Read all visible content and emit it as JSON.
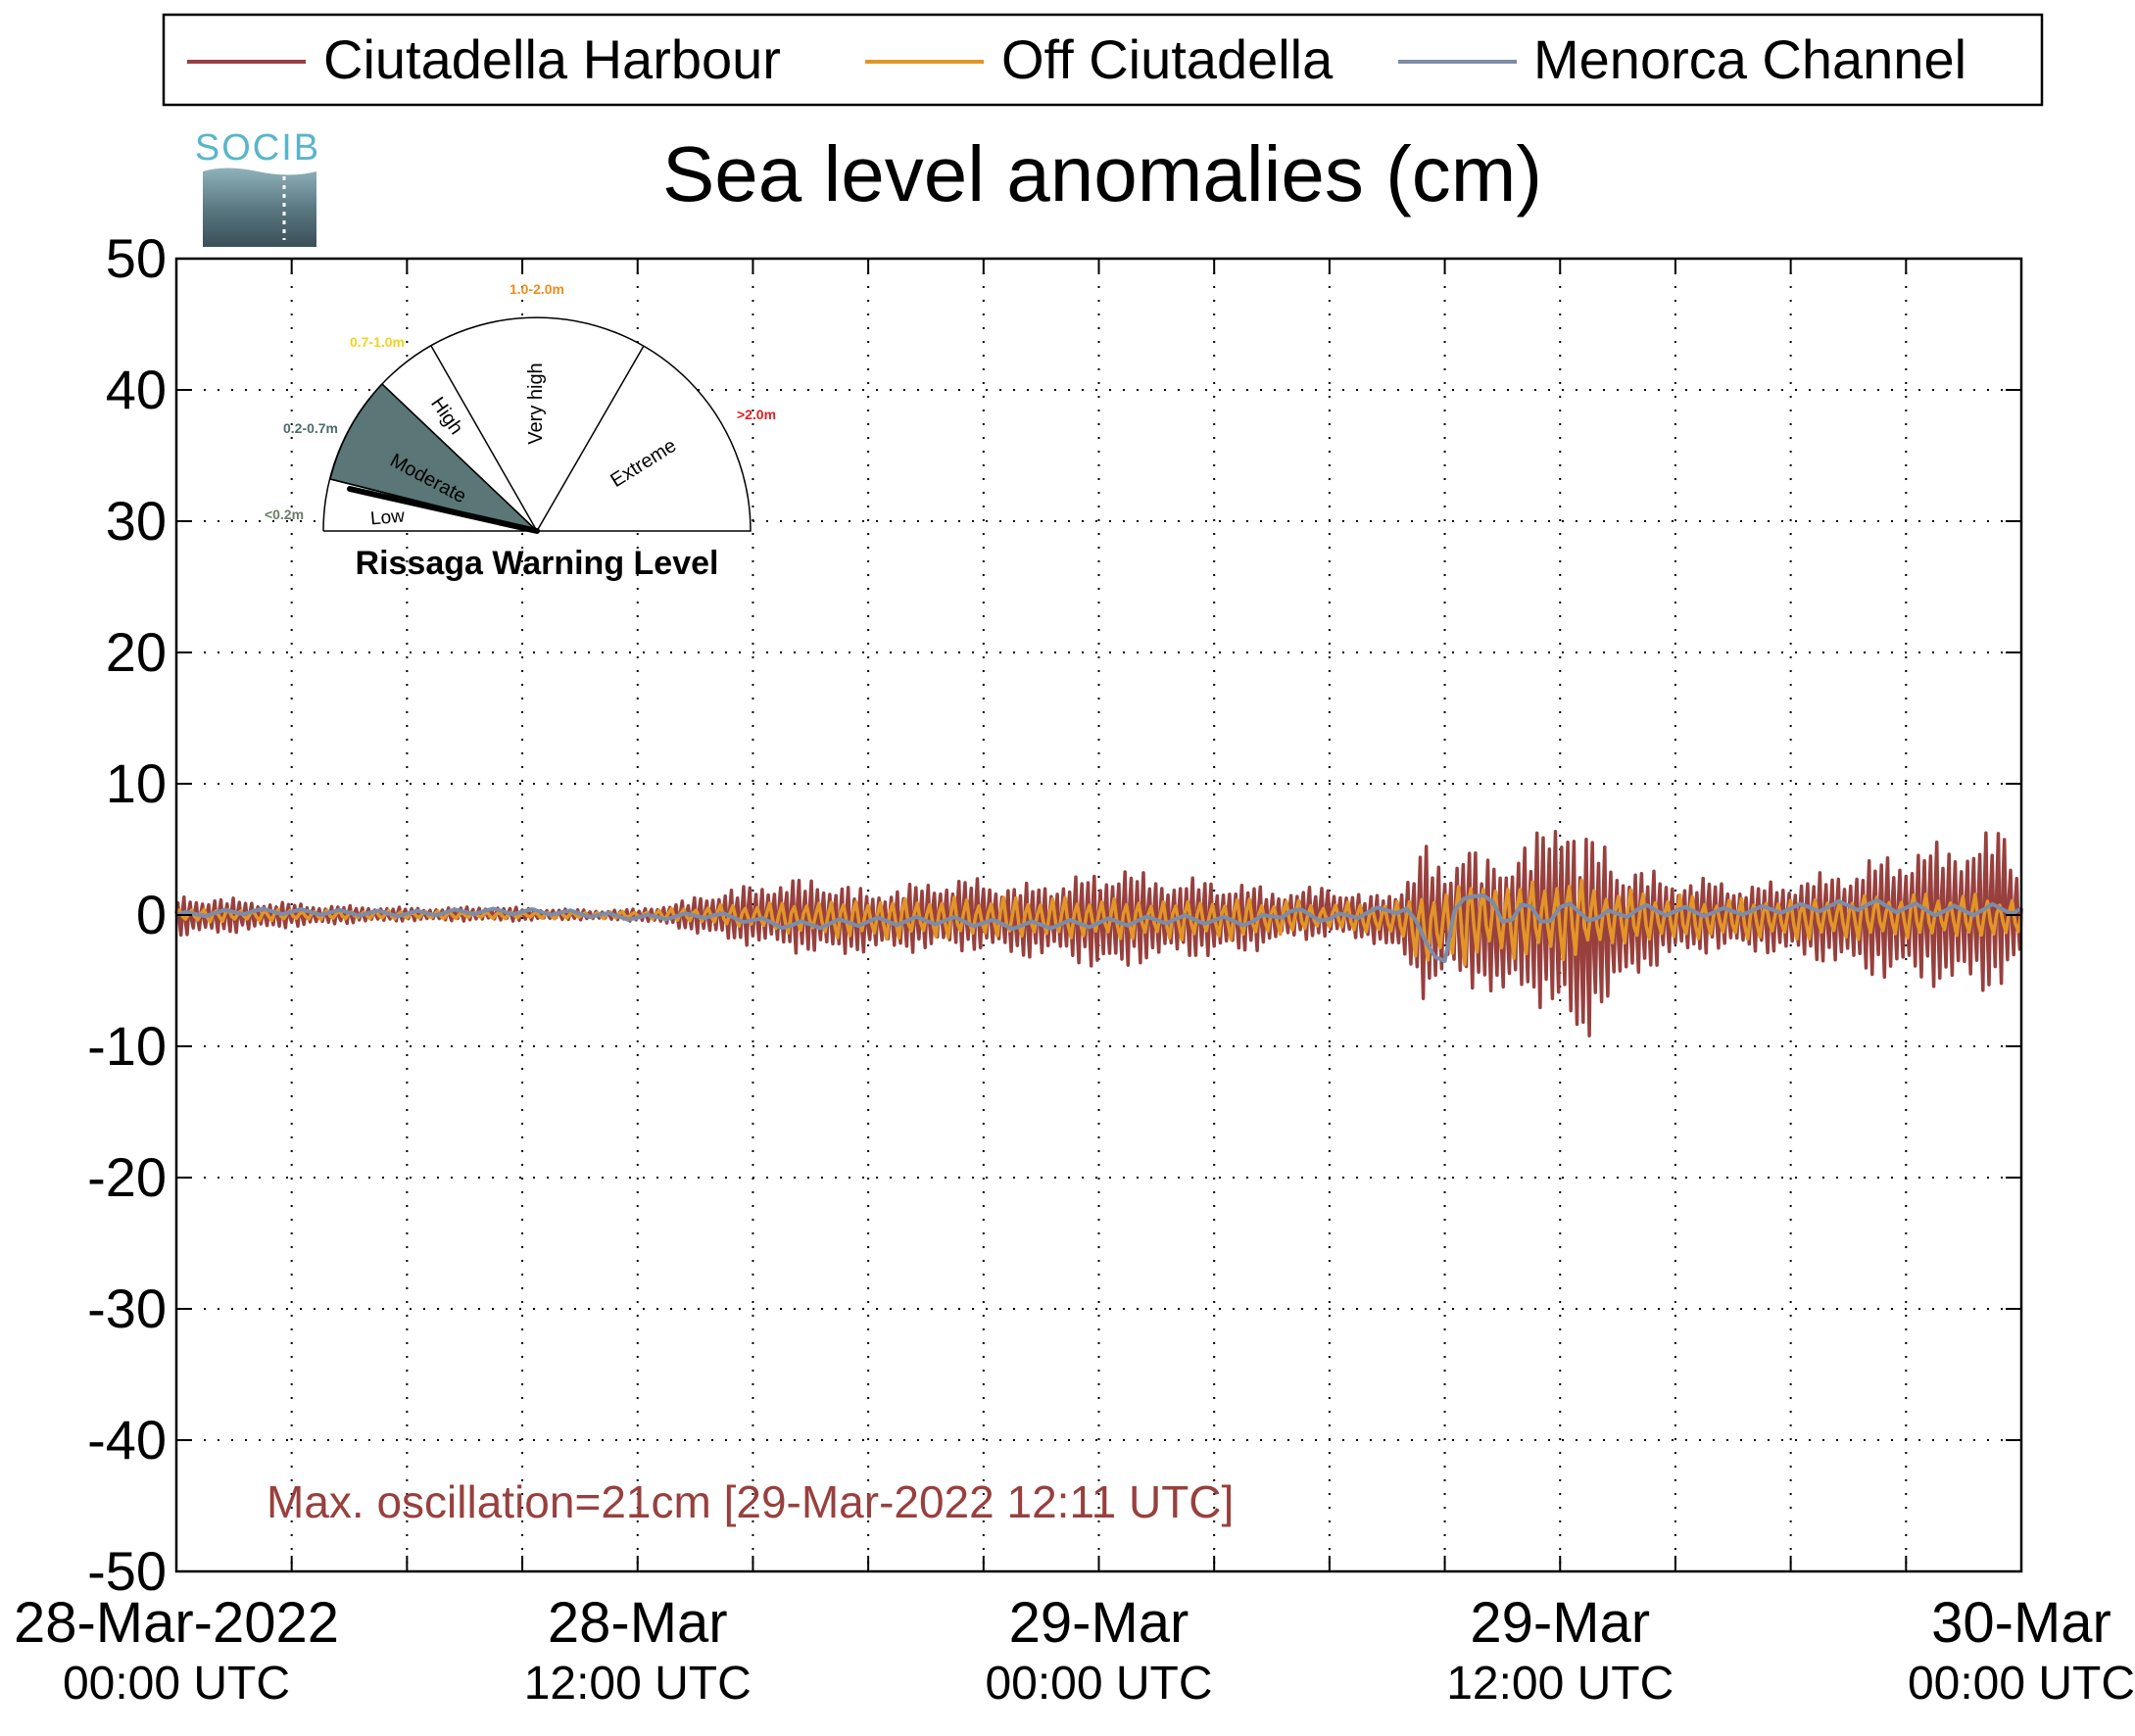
{
  "legend": {
    "entries": [
      {
        "label": "Ciutadella Harbour",
        "color": "#98403e"
      },
      {
        "label": "Off Ciutadella",
        "color": "#e39527"
      },
      {
        "label": "Menorca Channel",
        "color": "#7c8ca9"
      }
    ]
  },
  "logo": {
    "text": "SOCIB",
    "color": "#58b6c9"
  },
  "gauge": {
    "title": "Rissaga Warning Level",
    "sectors": [
      {
        "label": "Low",
        "range": "<0.2m",
        "range_color": "#6b7d64"
      },
      {
        "label": "Moderate",
        "range": "0.2-0.7m",
        "range_color": "#4c6c6c"
      },
      {
        "label": "High",
        "range": "0.7-1.0m",
        "range_color": "#f2d21e"
      },
      {
        "label": "Very high",
        "range": "1.0-2.0m",
        "range_color": "#f08c1e"
      },
      {
        "label": "Extreme",
        "range": ">2.0m",
        "range_color": "#e02020"
      }
    ],
    "active_level": "Moderate",
    "active_color": "#5a7676"
  },
  "annotation": {
    "text": "Max. oscillation=21cm [29-Mar-2022 12:11 UTC]",
    "color": "#98403e"
  },
  "chart_data": {
    "type": "line",
    "title": "Sea level anomalies (cm)",
    "xlabel": "",
    "ylabel": "",
    "x_unit": "hours since 28-Mar-2022 00:00 UTC",
    "xlim": [
      0,
      48
    ],
    "ylim": [
      -50,
      50
    ],
    "yticks": [
      50,
      40,
      30,
      20,
      10,
      0,
      -10,
      -20,
      -30,
      -40,
      -50
    ],
    "ytick_labels": [
      "50",
      "40",
      "30",
      "20",
      "10",
      "0",
      "-10",
      "-20",
      "-30",
      "-40",
      "-50"
    ],
    "xticks_major": [
      {
        "x": 0,
        "line1": "28-Mar-2022",
        "line2": "00:00 UTC"
      },
      {
        "x": 12,
        "line1": "28-Mar",
        "line2": "12:00 UTC"
      },
      {
        "x": 24,
        "line1": "29-Mar",
        "line2": "00:00 UTC"
      },
      {
        "x": 36,
        "line1": "29-Mar",
        "line2": "12:00 UTC"
      },
      {
        "x": 48,
        "line1": "30-Mar",
        "line2": "00:00 UTC"
      }
    ],
    "grid": true,
    "grid_x": [
      3,
      6,
      9,
      12,
      15,
      18,
      21,
      24,
      27,
      30,
      33,
      36,
      39,
      42,
      45
    ],
    "grid_y": [
      40,
      30,
      20,
      10,
      0,
      -10,
      -20,
      -30,
      -40
    ],
    "legend_position": "top",
    "series": [
      {
        "name": "Ciutadella Harbour",
        "color": "#98403e",
        "x": [
          0,
          1,
          2,
          3,
          4,
          5,
          6,
          7,
          8,
          9,
          10,
          11,
          12,
          13,
          14,
          15,
          16,
          17,
          18,
          19,
          20,
          21,
          22,
          23,
          24,
          24.5,
          25,
          26,
          27,
          28,
          29,
          30,
          31,
          32,
          32.5,
          33,
          33.5,
          34,
          34.5,
          35,
          35.5,
          36,
          36.2,
          36.5,
          37,
          37.5,
          38,
          39,
          40,
          41,
          42,
          43,
          44,
          45,
          46,
          47,
          47.5,
          48
        ],
        "upper": [
          1.5,
          1.5,
          1.2,
          1.0,
          0.8,
          0.7,
          0.6,
          0.6,
          0.7,
          0.6,
          0.5,
          0.4,
          0.5,
          1.0,
          2.0,
          2.5,
          3.0,
          3.0,
          2.0,
          2.5,
          3.0,
          3.0,
          2.5,
          3.0,
          3.5,
          4.5,
          3.5,
          3.0,
          3.0,
          2.5,
          2.0,
          2.5,
          1.5,
          3.0,
          6.0,
          4.0,
          6.5,
          4.5,
          5.5,
          6.0,
          7.0,
          9.0,
          10.0,
          7.0,
          6.5,
          5.0,
          4.0,
          3.0,
          3.0,
          2.5,
          3.0,
          3.5,
          4.5,
          5.5,
          6.0,
          6.5,
          7.5,
          4.0
        ],
        "lower": [
          -1.8,
          -1.6,
          -1.3,
          -1.0,
          -0.8,
          -0.6,
          -0.5,
          -0.5,
          -0.5,
          -0.5,
          -0.4,
          -0.4,
          -0.5,
          -1.0,
          -2.0,
          -2.5,
          -3.0,
          -3.5,
          -3.0,
          -3.0,
          -3.0,
          -3.0,
          -3.5,
          -3.5,
          -4.5,
          -5.0,
          -4.0,
          -3.5,
          -3.5,
          -3.0,
          -2.0,
          -2.0,
          -2.0,
          -4.0,
          -7.0,
          -5.0,
          -6.5,
          -5.5,
          -8.0,
          -6.5,
          -7.5,
          -9.0,
          -10.5,
          -11.5,
          -8.0,
          -7.0,
          -5.0,
          -3.5,
          -3.0,
          -3.0,
          -3.5,
          -4.0,
          -5.0,
          -5.5,
          -6.0,
          -6.5,
          -6.0,
          -4.5
        ],
        "period_h": 0.16
      },
      {
        "name": "Off Ciutadella",
        "color": "#e39527",
        "x": [
          0,
          4,
          8,
          12,
          14,
          16,
          18,
          20,
          22,
          24,
          26,
          28,
          30,
          32,
          32.5,
          33,
          33.5,
          34,
          35,
          36,
          37,
          38,
          40,
          42,
          44,
          46,
          48
        ],
        "upper": [
          0.6,
          0.4,
          0.3,
          0.3,
          0.8,
          1.2,
          1.5,
          1.5,
          1.5,
          1.5,
          1.4,
          1.5,
          1.0,
          1.2,
          3.0,
          2.0,
          3.5,
          3.0,
          3.0,
          3.5,
          2.5,
          2.0,
          1.5,
          1.5,
          1.8,
          1.8,
          1.5
        ],
        "lower": [
          -0.6,
          -0.4,
          -0.3,
          -0.3,
          -0.8,
          -1.5,
          -2.0,
          -2.0,
          -2.0,
          -2.0,
          -2.0,
          -2.0,
          -1.2,
          -2.0,
          -5.0,
          -3.5,
          -4.0,
          -3.5,
          -3.5,
          -4.0,
          -3.0,
          -2.5,
          -2.0,
          -2.0,
          -2.0,
          -2.0,
          -2.0
        ],
        "period_h": 0.32
      },
      {
        "name": "Menorca Channel",
        "color": "#7c8ca9",
        "x": [
          0,
          2,
          4,
          6,
          8,
          10,
          12,
          14,
          16,
          18,
          20,
          22,
          24,
          26,
          28,
          29,
          30,
          31,
          32,
          32.5,
          33,
          33.3,
          33.7,
          34,
          34.5,
          35,
          35.5,
          36,
          37,
          38,
          40,
          42,
          44,
          46,
          48
        ],
        "y": [
          0.0,
          0.3,
          0.2,
          0.1,
          0.3,
          0.2,
          -0.2,
          0.0,
          -0.8,
          -0.5,
          -0.4,
          -0.8,
          -0.6,
          -0.3,
          -0.5,
          0.3,
          -0.3,
          0.2,
          0.5,
          -2.0,
          -3.5,
          0.5,
          2.0,
          1.5,
          -0.5,
          0.8,
          -0.5,
          0.6,
          -0.2,
          0.4,
          0.2,
          0.5,
          0.8,
          0.3,
          0.5
        ],
        "ripple": [
          0.2,
          0.2,
          0.2,
          0.2,
          0.2,
          0.2,
          0.2,
          0.2,
          0.3,
          0.3,
          0.3,
          0.3,
          0.3,
          0.3,
          0.3,
          0.3,
          0.3,
          0.3,
          0.3,
          0.4,
          0.5,
          0.5,
          0.5,
          0.5,
          0.5,
          0.5,
          0.5,
          0.5,
          0.4,
          0.4,
          0.3,
          0.3,
          0.4,
          0.4,
          0.4
        ],
        "period_h": 1.0
      }
    ]
  }
}
